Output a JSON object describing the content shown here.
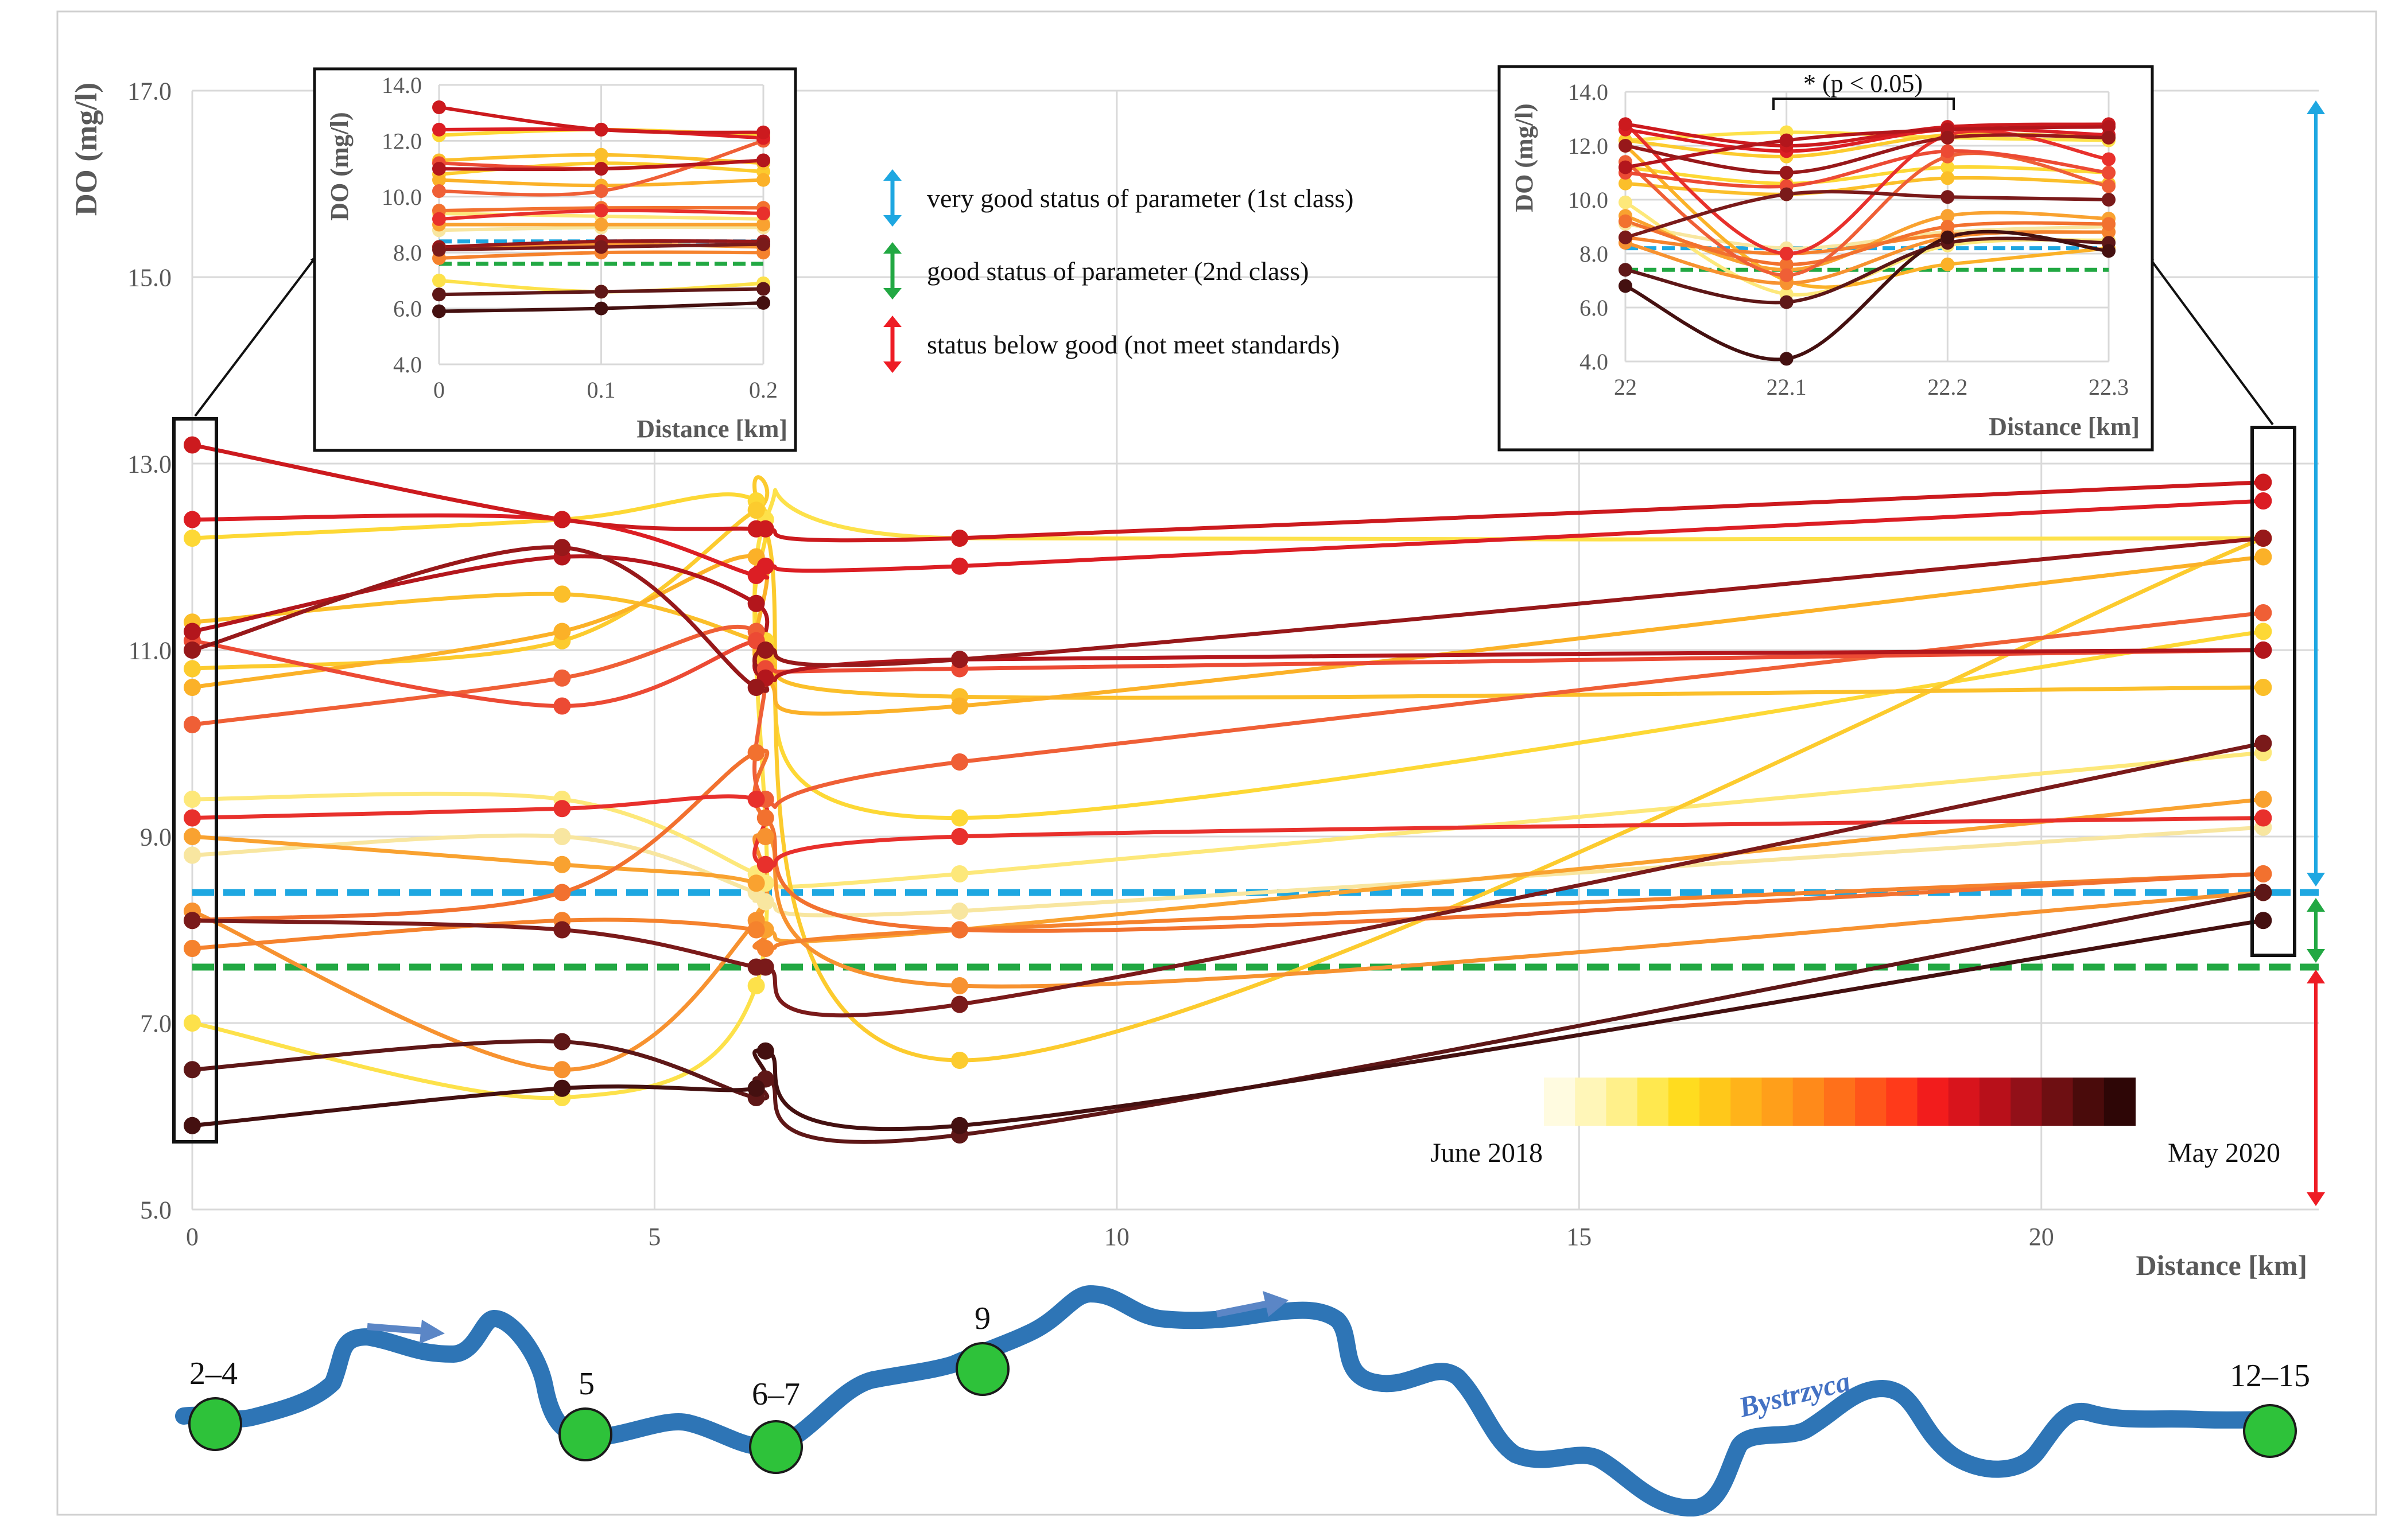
{
  "chart_data": {
    "type": "line",
    "ylabel": "DO (mg/l)",
    "xlabel": "Distance [km]",
    "xlim": [
      0,
      23
    ],
    "ylim": [
      5,
      17
    ],
    "x_ticks": [
      {
        "v": 0,
        "label": "0"
      },
      {
        "v": 5,
        "label": "5"
      },
      {
        "v": 10,
        "label": "10"
      },
      {
        "v": 15,
        "label": "15"
      },
      {
        "v": 20,
        "label": "20"
      }
    ],
    "y_ticks": [
      {
        "v": 5,
        "label": "5.0"
      },
      {
        "v": 7,
        "label": "7.0"
      },
      {
        "v": 9,
        "label": "9.0"
      },
      {
        "v": 11,
        "label": "11.0"
      },
      {
        "v": 13,
        "label": "13.0"
      },
      {
        "v": 15,
        "label": "15.0"
      },
      {
        "v": 17,
        "label": "17.0"
      }
    ],
    "grid": true,
    "x": [
      0,
      4,
      6.1,
      6.2,
      8.3,
      22.4
    ],
    "thresholds": [
      {
        "value": 8.4,
        "color": "#1ea7e1"
      },
      {
        "value": 7.6,
        "color": "#22a843"
      }
    ],
    "series": [
      {
        "color": "#f8e6a0",
        "values": [
          8.8,
          9.0,
          8.4,
          8.3,
          8.2,
          9.1
        ]
      },
      {
        "color": "#fde87a",
        "values": [
          9.4,
          9.4,
          8.6,
          8.5,
          8.6,
          9.9
        ]
      },
      {
        "color": "#fde14a",
        "values": [
          7.0,
          6.2,
          7.4,
          12.4,
          12.2,
          12.2
        ]
      },
      {
        "color": "#fdd835",
        "values": [
          12.2,
          12.4,
          12.6,
          11.1,
          9.2,
          11.2
        ]
      },
      {
        "color": "#fccb2e",
        "values": [
          10.8,
          11.1,
          12.5,
          12.3,
          6.6,
          12.2
        ]
      },
      {
        "color": "#fbbf2a",
        "values": [
          11.3,
          11.6,
          11.1,
          10.9,
          10.5,
          10.6
        ]
      },
      {
        "color": "#fbb128",
        "values": [
          10.6,
          11.2,
          12.0,
          10.7,
          10.4,
          12.0
        ]
      },
      {
        "color": "#f9a230",
        "values": [
          9.0,
          8.7,
          8.5,
          8.0,
          8.0,
          9.4
        ]
      },
      {
        "color": "#f79230",
        "values": [
          8.2,
          6.5,
          8.1,
          9.0,
          7.4,
          8.4
        ]
      },
      {
        "color": "#f5822d",
        "values": [
          7.8,
          8.1,
          8.0,
          7.8,
          8.0,
          8.6
        ]
      },
      {
        "color": "#f2712f",
        "values": [
          8.1,
          8.4,
          9.9,
          9.2,
          8.0,
          8.6
        ]
      },
      {
        "color": "#ef5f36",
        "values": [
          10.2,
          10.7,
          11.2,
          9.4,
          9.8,
          11.4
        ]
      },
      {
        "color": "#ec4a34",
        "values": [
          11.1,
          10.4,
          11.1,
          10.8,
          10.8,
          11.0
        ]
      },
      {
        "color": "#e8302c",
        "values": [
          9.2,
          9.3,
          9.4,
          8.7,
          9.0,
          9.2
        ]
      },
      {
        "color": "#dc1e24",
        "values": [
          12.4,
          12.4,
          11.8,
          11.9,
          11.9,
          12.6
        ]
      },
      {
        "color": "#cc1a1e",
        "values": [
          13.2,
          12.4,
          12.3,
          12.3,
          12.2,
          12.8
        ]
      },
      {
        "color": "#b3161c",
        "values": [
          11.2,
          12.0,
          11.5,
          10.7,
          10.9,
          11.0
        ]
      },
      {
        "color": "#97181a",
        "values": [
          11.0,
          12.1,
          10.6,
          11.0,
          10.9,
          12.2
        ]
      },
      {
        "color": "#7a1a1a",
        "values": [
          8.1,
          8.0,
          7.6,
          7.6,
          7.2,
          10.0
        ]
      },
      {
        "color": "#5e1717",
        "values": [
          6.5,
          6.8,
          6.2,
          6.4,
          5.8,
          8.4
        ]
      },
      {
        "color": "#441010",
        "values": [
          5.9,
          6.3,
          6.3,
          6.7,
          5.9,
          8.1
        ]
      }
    ],
    "inset_left": {
      "ylabel": "DO (mg/l)",
      "xlabel": "Distance [km]",
      "x": [
        0,
        0.1,
        0.2
      ],
      "x_ticks": [
        {
          "v": 0,
          "label": "0"
        },
        {
          "v": 0.1,
          "label": "0.1"
        },
        {
          "v": 0.2,
          "label": "0.2"
        }
      ],
      "y_ticks": [
        {
          "v": 4,
          "label": "4.0"
        },
        {
          "v": 6,
          "label": "6.0"
        },
        {
          "v": 8,
          "label": "8.0"
        },
        {
          "v": 10,
          "label": "10.0"
        },
        {
          "v": 12,
          "label": "12.0"
        },
        {
          "v": 14,
          "label": "14.0"
        }
      ],
      "ylim": [
        4,
        14
      ],
      "thresholds": [
        {
          "value": 8.4,
          "color": "#1ea7e1"
        },
        {
          "value": 7.6,
          "color": "#22a843"
        }
      ],
      "series": [
        {
          "color": "#f8e6a0",
          "values": [
            8.8,
            8.9,
            8.9
          ]
        },
        {
          "color": "#fde87a",
          "values": [
            9.4,
            9.3,
            9.2
          ]
        },
        {
          "color": "#fde14a",
          "values": [
            7.0,
            6.6,
            6.9
          ]
        },
        {
          "color": "#fdd835",
          "values": [
            12.2,
            12.4,
            12.2
          ]
        },
        {
          "color": "#fccb2e",
          "values": [
            10.8,
            11.2,
            10.9
          ]
        },
        {
          "color": "#fbbf2a",
          "values": [
            11.3,
            11.5,
            11.2
          ]
        },
        {
          "color": "#fbb128",
          "values": [
            10.6,
            10.4,
            10.6
          ]
        },
        {
          "color": "#f9a230",
          "values": [
            9.0,
            9.0,
            9.0
          ]
        },
        {
          "color": "#f79230",
          "values": [
            8.2,
            8.3,
            8.2
          ]
        },
        {
          "color": "#f5822d",
          "values": [
            7.8,
            8.0,
            8.0
          ]
        },
        {
          "color": "#f2712f",
          "values": [
            9.5,
            9.6,
            9.6
          ]
        },
        {
          "color": "#ef5f36",
          "values": [
            10.2,
            10.2,
            12.0
          ]
        },
        {
          "color": "#ec4a34",
          "values": [
            11.2,
            11.0,
            11.3
          ]
        },
        {
          "color": "#e8302c",
          "values": [
            9.2,
            9.5,
            9.4
          ]
        },
        {
          "color": "#dc1e24",
          "values": [
            12.4,
            12.4,
            12.1
          ]
        },
        {
          "color": "#cc1a1e",
          "values": [
            13.2,
            12.4,
            12.3
          ]
        },
        {
          "color": "#b3161c",
          "values": [
            11.0,
            11.0,
            11.3
          ]
        },
        {
          "color": "#97181a",
          "values": [
            8.2,
            8.4,
            8.4
          ]
        },
        {
          "color": "#7a1a1a",
          "values": [
            8.1,
            8.2,
            8.3
          ]
        },
        {
          "color": "#5e1717",
          "values": [
            6.5,
            6.6,
            6.7
          ]
        },
        {
          "color": "#441010",
          "values": [
            5.9,
            6.0,
            6.2
          ]
        }
      ]
    },
    "inset_right": {
      "ylabel": "DO (mg/l)",
      "xlabel": "Distance [km]",
      "x": [
        22,
        22.1,
        22.2,
        22.3
      ],
      "x_ticks": [
        {
          "v": 22,
          "label": "22"
        },
        {
          "v": 22.1,
          "label": "22.1"
        },
        {
          "v": 22.2,
          "label": "22.2"
        },
        {
          "v": 22.3,
          "label": "22.3"
        }
      ],
      "y_ticks": [
        {
          "v": 4,
          "label": "4.0"
        },
        {
          "v": 6,
          "label": "6.0"
        },
        {
          "v": 8,
          "label": "8.0"
        },
        {
          "v": 10,
          "label": "10.0"
        },
        {
          "v": 12,
          "label": "12.0"
        },
        {
          "v": 14,
          "label": "14.0"
        }
      ],
      "ylim": [
        4,
        14
      ],
      "thresholds": [
        {
          "value": 8.2,
          "color": "#1ea7e1"
        },
        {
          "value": 7.4,
          "color": "#22a843"
        }
      ],
      "significance_label": "* (p < 0.05)",
      "series": [
        {
          "color": "#f8e6a0",
          "values": [
            9.1,
            8.2,
            8.8,
            9.0
          ]
        },
        {
          "color": "#fde87a",
          "values": [
            9.9,
            6.5,
            8.3,
            8.5
          ]
        },
        {
          "color": "#fde14a",
          "values": [
            12.2,
            12.5,
            12.3,
            12.2
          ]
        },
        {
          "color": "#fdd835",
          "values": [
            11.2,
            10.6,
            11.2,
            11.0
          ]
        },
        {
          "color": "#fccb2e",
          "values": [
            12.2,
            11.6,
            12.4,
            12.3
          ]
        },
        {
          "color": "#fbbf2a",
          "values": [
            10.6,
            10.2,
            10.8,
            10.6
          ]
        },
        {
          "color": "#fbb128",
          "values": [
            12.0,
            7.0,
            7.6,
            8.2
          ]
        },
        {
          "color": "#f9a230",
          "values": [
            9.4,
            7.4,
            9.4,
            9.3
          ]
        },
        {
          "color": "#f79230",
          "values": [
            8.4,
            6.9,
            8.6,
            8.8
          ]
        },
        {
          "color": "#f5822d",
          "values": [
            8.6,
            8.0,
            8.7,
            8.8
          ]
        },
        {
          "color": "#f2712f",
          "values": [
            9.2,
            7.6,
            9.0,
            9.1
          ]
        },
        {
          "color": "#ef5f36",
          "values": [
            11.4,
            7.2,
            11.6,
            10.5
          ]
        },
        {
          "color": "#ec4a34",
          "values": [
            11.0,
            10.5,
            11.8,
            11.0
          ]
        },
        {
          "color": "#e8302c",
          "values": [
            12.8,
            8.0,
            12.4,
            11.5
          ]
        },
        {
          "color": "#dc1e24",
          "values": [
            12.6,
            11.8,
            12.6,
            12.4
          ]
        },
        {
          "color": "#cc1a1e",
          "values": [
            12.8,
            12.0,
            12.7,
            12.8
          ]
        },
        {
          "color": "#b3161c",
          "values": [
            11.2,
            12.2,
            12.6,
            12.7
          ]
        },
        {
          "color": "#97181a",
          "values": [
            12.0,
            11.0,
            12.3,
            12.3
          ]
        },
        {
          "color": "#7a1a1a",
          "values": [
            8.6,
            10.2,
            10.1,
            10.0
          ]
        },
        {
          "color": "#5e1717",
          "values": [
            7.4,
            6.2,
            8.4,
            8.4
          ]
        },
        {
          "color": "#441010",
          "values": [
            6.8,
            4.1,
            8.6,
            8.1
          ]
        }
      ]
    },
    "legend": [
      {
        "label": "very good status of parameter (1st class)",
        "color": "#1ea7e1"
      },
      {
        "label": "good status of parameter (2nd class)",
        "color": "#22a843"
      },
      {
        "label": "status below good (not meet standards)",
        "color": "#ee1c25"
      }
    ],
    "colorbar": {
      "start_label": "June 2018",
      "end_label": "May 2020",
      "colors": [
        "#fffbe0",
        "#fff6b8",
        "#fff08a",
        "#ffe84f",
        "#ffdc1f",
        "#ffc81a",
        "#ffb31a",
        "#ff9f1a",
        "#ff8a1a",
        "#ff701a",
        "#ff551a",
        "#ff3a1a",
        "#f21c1c",
        "#d8141c",
        "#b8101a",
        "#921018",
        "#6e0f12",
        "#4a0b0b",
        "#2e0606"
      ]
    }
  },
  "river_map": {
    "river_name": "Bystrzyca",
    "sites": [
      {
        "label": "2–4"
      },
      {
        "label": "5"
      },
      {
        "label": "6–7"
      },
      {
        "label": "9"
      },
      {
        "label": "12–15"
      }
    ]
  }
}
